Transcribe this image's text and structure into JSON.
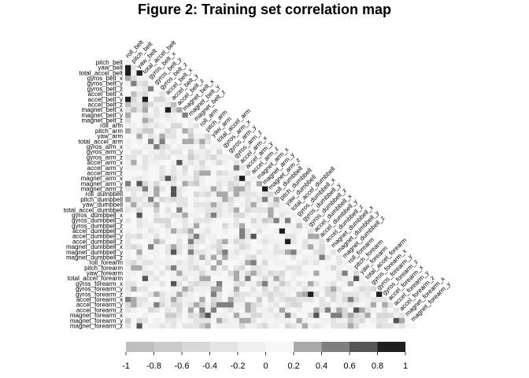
{
  "chart_data": {
    "type": "heatmap",
    "title": "Figure 2: Training set correlation map",
    "layout": "lower-triangle",
    "variables": [
      "roll_belt",
      "pitch_belt",
      "yaw_belt",
      "total_accel_belt",
      "gyros_belt_x",
      "gyros_belt_y",
      "gyros_belt_z",
      "accel_belt_x",
      "accel_belt_y",
      "accel_belt_z",
      "magnet_belt_x",
      "magnet_belt_y",
      "magnet_belt_z",
      "roll_arm",
      "pitch_arm",
      "yaw_arm",
      "total_accel_arm",
      "gyros_arm_x",
      "gyros_arm_y",
      "gyros_arm_z",
      "accel_arm_x",
      "accel_arm_y",
      "accel_arm_z",
      "magnet_arm_x",
      "magnet_arm_y",
      "magnet_arm_z",
      "roll_dumbbell",
      "pitch_dumbbell",
      "yaw_dumbbell",
      "total_accel_dumbbell",
      "gyros_dumbbell_x",
      "gyros_dumbbell_y",
      "gyros_dumbbell_z",
      "accel_dumbbell_x",
      "accel_dumbbell_y",
      "accel_dumbbell_z",
      "magnet_dumbbell_x",
      "magnet_dumbbell_y",
      "magnet_dumbbell_z",
      "roll_forearm",
      "pitch_forearm",
      "yaw_forearm",
      "total_accel_forearm",
      "gyros_forearm_x",
      "gyros_forearm_y",
      "gyros_forearm_z",
      "accel_forearm_x",
      "accel_forearm_y",
      "accel_forearm_z",
      "magnet_forearm_x",
      "magnet_forearm_y",
      "magnet_forearm_z"
    ],
    "color_scale": {
      "breaks": [
        -1,
        -0.8,
        -0.6,
        -0.4,
        -0.2,
        0,
        0.2,
        0.4,
        0.6,
        0.8,
        1
      ],
      "tick_labels": [
        "-1",
        "-0.8",
        "-0.6",
        "-0.4",
        "-0.2",
        "0",
        "0.2",
        "0.4",
        "0.6",
        "0.8",
        "1"
      ],
      "colors": [
        "#bebebe",
        "#cbcbcb",
        "#d8d8d8",
        "#e4e4e4",
        "#f0f0f0",
        "#f7f7f7",
        "#a9a9a9",
        "#7f7f7f",
        "#555555",
        "#1f1f1f"
      ]
    },
    "strong_correlations": [
      {
        "row": "yaw_belt",
        "col": "roll_belt",
        "value": 0.95
      },
      {
        "row": "total_accel_belt",
        "col": "roll_belt",
        "value": 0.98
      },
      {
        "row": "total_accel_belt",
        "col": "yaw_belt",
        "value": 0.85
      },
      {
        "row": "accel_belt_y",
        "col": "roll_belt",
        "value": 0.9
      },
      {
        "row": "accel_belt_y",
        "col": "total_accel_belt",
        "value": 0.9
      },
      {
        "row": "accel_belt_z",
        "col": "roll_belt",
        "value": -0.99
      },
      {
        "row": "accel_belt_z",
        "col": "total_accel_belt",
        "value": -0.97
      },
      {
        "row": "accel_belt_z",
        "col": "accel_belt_y",
        "value": -0.93
      },
      {
        "row": "accel_belt_x",
        "col": "pitch_belt",
        "value": -0.97
      },
      {
        "row": "magnet_belt_x",
        "col": "pitch_belt",
        "value": -0.88
      },
      {
        "row": "magnet_belt_x",
        "col": "accel_belt_x",
        "value": 0.89
      },
      {
        "row": "magnet_arm_x",
        "col": "accel_arm_x",
        "value": 0.81
      },
      {
        "row": "magnet_arm_z",
        "col": "magnet_arm_y",
        "value": 0.81
      },
      {
        "row": "accel_dumbbell_z",
        "col": "yaw_dumbbell",
        "value": 0.85
      },
      {
        "row": "accel_dumbbell_x",
        "col": "pitch_dumbbell",
        "value": 0.81
      },
      {
        "row": "gyros_forearm_z",
        "col": "gyros_dumbbell_z",
        "value": 0.93
      },
      {
        "row": "gyros_forearm_z",
        "col": "gyros_dumbbell_x",
        "value": -0.91
      },
      {
        "row": "gyros_forearm_z",
        "col": "gyros_forearm_y",
        "value": 0.87
      },
      {
        "row": "gyros_dumbbell_z",
        "col": "gyros_dumbbell_x",
        "value": -0.98
      },
      {
        "row": "accel_forearm_y",
        "col": "magnet_forearm_y",
        "value": 0.74
      }
    ],
    "pattern_seed": 1975,
    "grid": false,
    "legend": "bottom"
  }
}
